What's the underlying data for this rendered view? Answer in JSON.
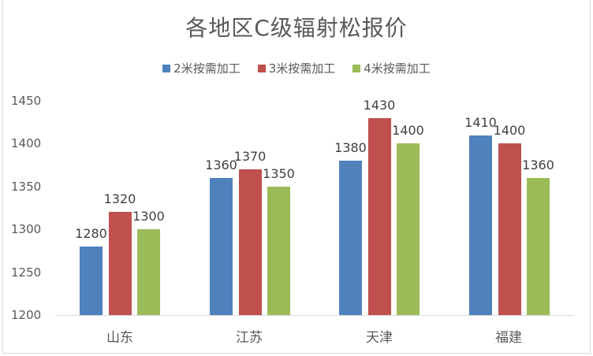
{
  "chart_data": {
    "type": "bar",
    "title": "各地区C级辐射松报价",
    "xlabel": "",
    "ylabel": "",
    "categories": [
      "山东",
      "江苏",
      "天津",
      "福建"
    ],
    "series": [
      {
        "name": "2米按需加工",
        "color": "#4f81bd",
        "values": [
          1280,
          1360,
          1380,
          1410
        ]
      },
      {
        "name": "3米按需加工",
        "color": "#c0504d",
        "values": [
          1320,
          1370,
          1430,
          1400
        ]
      },
      {
        "name": "4米按需加工",
        "color": "#9bbb59",
        "values": [
          1300,
          1350,
          1400,
          1360
        ]
      }
    ],
    "ylim": [
      1200,
      1450
    ],
    "yticks": [
      "1200",
      "1250",
      "1300",
      "1350",
      "1400",
      "1450"
    ],
    "grid": false,
    "legend_position": "top",
    "data_labels": true
  }
}
